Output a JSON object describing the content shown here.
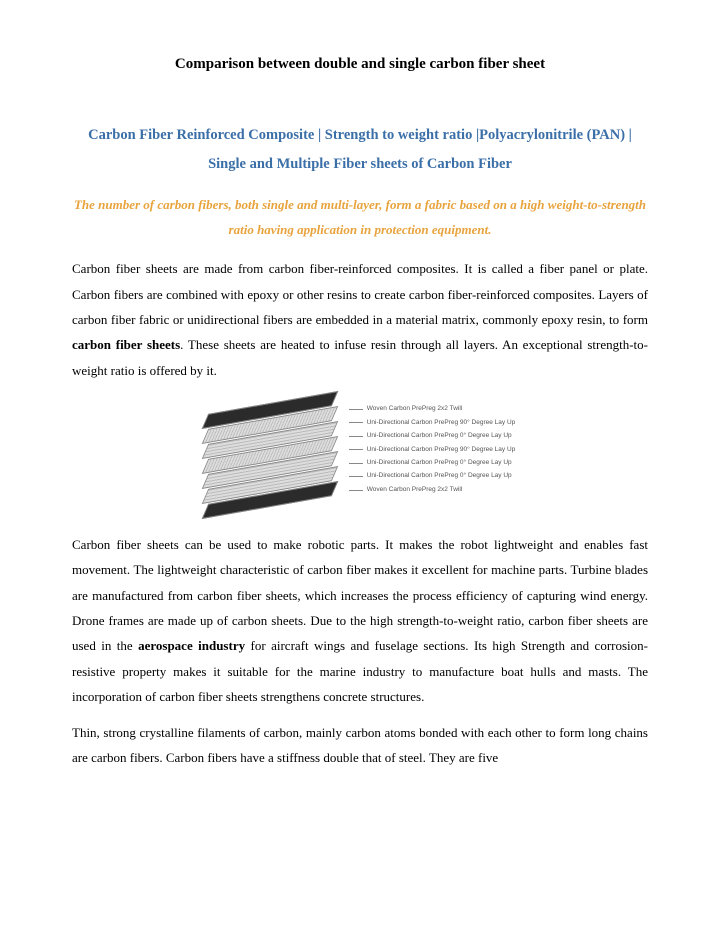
{
  "title": "Comparison between double and single carbon fiber sheet",
  "subtitle_color": "#3b6fa8",
  "subtitle": "Carbon Fiber Reinforced Composite | Strength to weight ratio |Polyacrylonitrile (PAN) | Single and Multiple Fiber sheets of Carbon Fiber",
  "tagline_color": "#e8a33d",
  "tagline": "The number of carbon fibers, both single and multi-layer, form a fabric based on a high weight-to-strength ratio having application in protection equipment.",
  "para1_a": "Carbon fiber sheets are made from carbon fiber-reinforced composites. It is called a fiber panel or plate. Carbon fibers are combined with epoxy or other resins to create carbon fiber-reinforced composites. Layers of carbon fiber fabric or unidirectional fibers are embedded in a material matrix, commonly epoxy resin, to form ",
  "para1_bold": "carbon fiber sheets",
  "para1_b": ". These sheets are heated to infuse resin through all layers. An exceptional strength-to-weight ratio is offered by it.",
  "diagram_labels": [
    "Woven Carbon PrePreg 2x2 Twill",
    "Uni-Directional Carbon PrePreg 90° Degree Lay Up",
    "Uni-Directional Carbon PrePreg 0° Degree Lay Up",
    "Uni-Directional Carbon PrePreg 90° Degree Lay Up",
    "Uni-Directional Carbon PrePreg 0° Degree Lay Up",
    "Uni-Directional Carbon PrePreg 0° Degree Lay Up",
    "Woven Carbon PrePreg 2x2 Twill"
  ],
  "para2_a": "Carbon fiber sheets can be used to make robotic parts. It makes the robot lightweight and enables fast movement. The lightweight characteristic of carbon fiber makes it excellent for machine parts. Turbine blades are manufactured from carbon fiber sheets, which increases the process efficiency of capturing wind energy. Drone frames are made up of carbon sheets. Due to the high strength-to-weight ratio, carbon fiber sheets are used in the ",
  "para2_bold": "aerospace industry",
  "para2_b": " for aircraft wings and fuselage sections. Its high Strength and corrosion-resistive property makes it suitable for the marine industry to manufacture boat hulls and masts. The incorporation of carbon fiber sheets strengthens concrete structures.",
  "para3": "Thin, strong crystalline filaments of carbon, mainly carbon atoms bonded with each other to form long chains are carbon fibers. Carbon fibers have a stiffness double that of steel. They are five"
}
